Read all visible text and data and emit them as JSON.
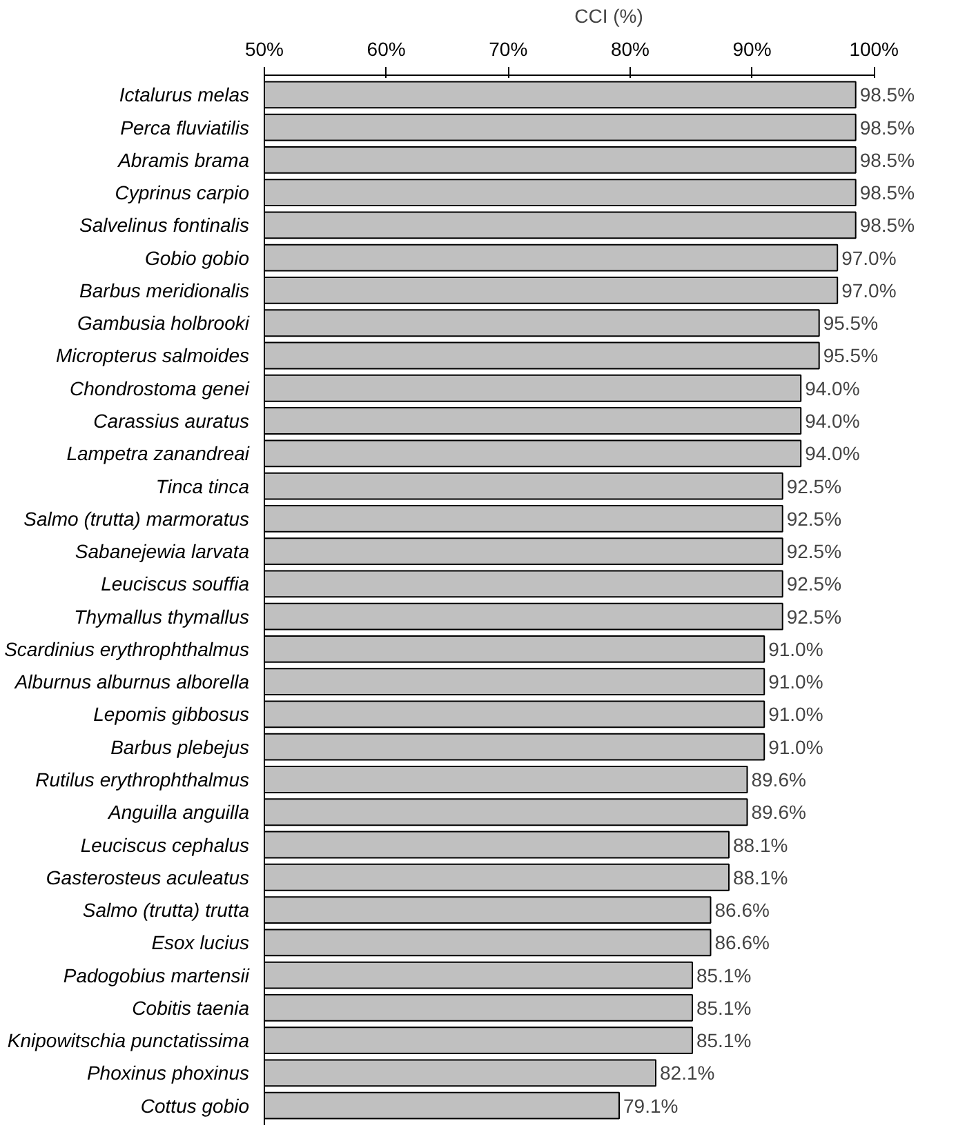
{
  "chart_data": {
    "type": "bar",
    "orientation": "horizontal",
    "xlabel": "CCI (%)",
    "categories": [
      "Ictalurus melas",
      "Perca fluviatilis",
      "Abramis brama",
      "Cyprinus carpio",
      "Salvelinus fontinalis",
      "Gobio gobio",
      "Barbus meridionalis",
      "Gambusia holbrooki",
      "Micropterus salmoides",
      "Chondrostoma genei",
      "Carassius auratus",
      "Lampetra zanandreai",
      "Tinca tinca",
      "Salmo (trutta) marmoratus",
      "Sabanejewia larvata",
      "Leuciscus souffia",
      "Thymallus thymallus",
      "Scardinius erythrophthalmus",
      "Alburnus alburnus alborella",
      "Lepomis gibbosus",
      "Barbus plebejus",
      "Rutilus erythrophthalmus",
      "Anguilla anguilla",
      "Leuciscus cephalus",
      "Gasterosteus aculeatus",
      "Salmo (trutta) trutta",
      "Esox lucius",
      "Padogobius martensii",
      "Cobitis taenia",
      "Knipowitschia punctatissima",
      "Phoxinus phoxinus",
      "Cottus gobio"
    ],
    "values": [
      98.5,
      98.5,
      98.5,
      98.5,
      98.5,
      97.0,
      97.0,
      95.5,
      95.5,
      94.0,
      94.0,
      94.0,
      92.5,
      92.5,
      92.5,
      92.5,
      92.5,
      91.0,
      91.0,
      91.0,
      91.0,
      89.6,
      89.6,
      88.1,
      88.1,
      86.6,
      86.6,
      85.1,
      85.1,
      85.1,
      82.1,
      79.1
    ],
    "value_labels": [
      "98.5%",
      "98.5%",
      "98.5%",
      "98.5%",
      "98.5%",
      "97.0%",
      "97.0%",
      "95.5%",
      "95.5%",
      "94.0%",
      "94.0%",
      "94.0%",
      "92.5%",
      "92.5%",
      "92.5%",
      "92.5%",
      "92.5%",
      "91.0%",
      "91.0%",
      "91.0%",
      "91.0%",
      "89.6%",
      "89.6%",
      "88.1%",
      "88.1%",
      "86.6%",
      "86.6%",
      "85.1%",
      "85.1%",
      "85.1%",
      "82.1%",
      "79.1%"
    ],
    "color": "#c0c0c0",
    "xlim": [
      50,
      100
    ],
    "xticks": [
      {
        "value": 50,
        "label": "50%"
      },
      {
        "value": 60,
        "label": "60%"
      },
      {
        "value": 70,
        "label": "70%"
      },
      {
        "value": 80,
        "label": "80%"
      },
      {
        "value": 90,
        "label": "90%"
      },
      {
        "value": 100,
        "label": "100%"
      }
    ],
    "grid": false
  }
}
